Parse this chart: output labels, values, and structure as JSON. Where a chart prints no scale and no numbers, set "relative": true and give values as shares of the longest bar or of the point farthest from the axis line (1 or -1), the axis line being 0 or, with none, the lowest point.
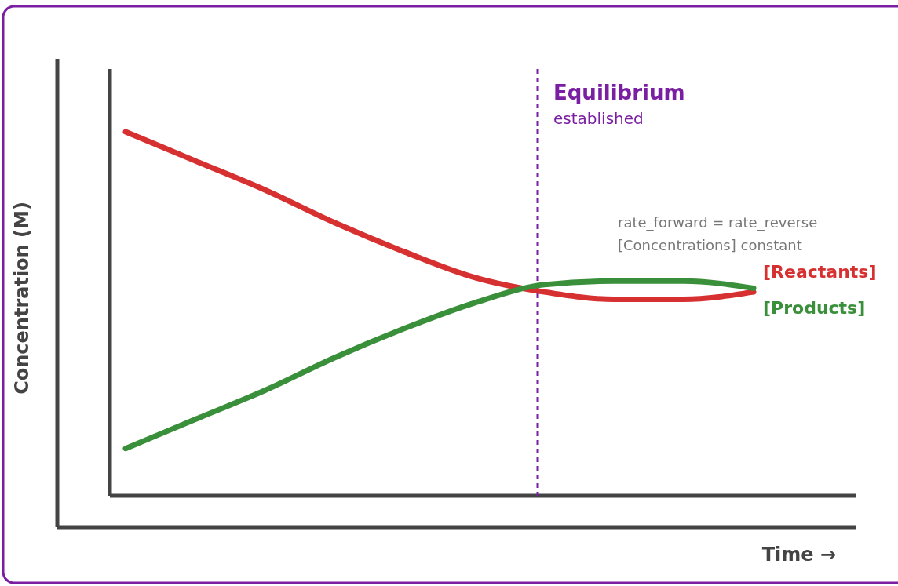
{
  "chart_data": {
    "type": "line",
    "relative": true,
    "ylabel": "Concentration (M)",
    "xlabel": "Time →",
    "categories": [
      null,
      null,
      null,
      null,
      null,
      null,
      null,
      null,
      null,
      null
    ],
    "series": [
      {
        "name": "[Reactants]",
        "color": "#d63031",
        "values": [
          1,
          0.92,
          0.84,
          0.75,
          0.67,
          0.6,
          0.56,
          0.54,
          0.54,
          0.56
        ]
      },
      {
        "name": "[Products]",
        "color": "#3a8f3a",
        "values": [
          0.13,
          0.21,
          0.29,
          0.38,
          0.46,
          0.53,
          0.58,
          0.59,
          0.59,
          0.57
        ]
      }
    ],
    "annotations": [
      "Equilibrium",
      "established",
      "rate_forward = rate_reverse",
      "[Concentrations] constant"
    ],
    "legend": false,
    "marker": "none",
    "line_style": "solid"
  }
}
